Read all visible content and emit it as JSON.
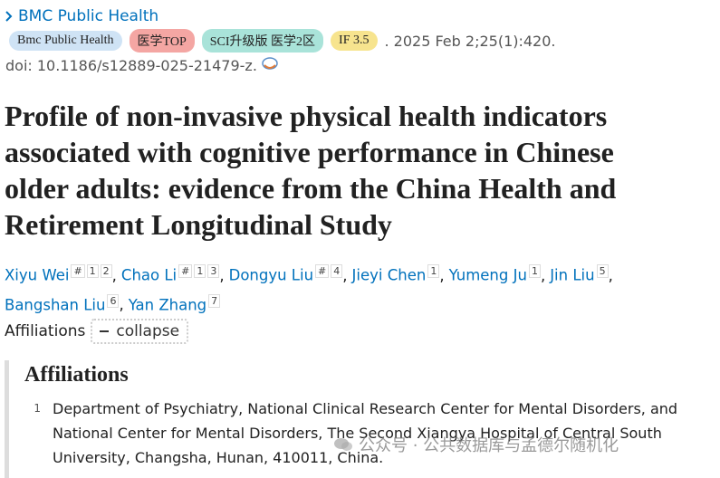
{
  "header": {
    "journal": "BMC Public Health",
    "badges": [
      {
        "text": "Bmc Public Health",
        "color": "#cfe3f5"
      },
      {
        "text": "医学TOP",
        "color": "#f4a6a3"
      },
      {
        "text": "SCI升级版 医学2区",
        "color": "#a9e3d9"
      },
      {
        "text": "IF 3.5",
        "color": "#f7e48e"
      }
    ],
    "citation": ". 2025 Feb 2;25(1):420.",
    "doi": "doi: 10.1186/s12889-025-21479-z."
  },
  "title_lines": [
    "Profile of non-invasive physical health indicators",
    "associated with cognitive performance in Chinese",
    "older adults: evidence from the China Health and",
    "Retirement Longitudinal Study"
  ],
  "authors": {
    "separator": ",",
    "list": [
      {
        "name": "Xiyu Wei",
        "marks": [
          "#",
          "1",
          "2"
        ]
      },
      {
        "name": "Chao Li",
        "marks": [
          "#",
          "1",
          "3"
        ]
      },
      {
        "name": "Dongyu Liu",
        "marks": [
          "#",
          "4"
        ]
      },
      {
        "name": "Jieyi Chen",
        "marks": [
          "1"
        ]
      },
      {
        "name": "Yumeng Ju",
        "marks": [
          "1"
        ]
      },
      {
        "name": "Jin Liu",
        "marks": [
          "5"
        ]
      },
      {
        "name": "Bangshan Liu",
        "marks": [
          "6"
        ]
      },
      {
        "name": "Yan Zhang",
        "marks": [
          "7"
        ]
      }
    ]
  },
  "affiliations_toggle": {
    "label": "Affiliations",
    "button": "collapse"
  },
  "affiliations": {
    "heading": "Affiliations",
    "items": [
      {
        "number": "1",
        "text": "Department of Psychiatry, National Clinical Research Center for Mental Disorders, and National Center for Mental Disorders, The Second Xiangya Hospital of Central South University, Changsha, Hunan, 410011, China."
      }
    ]
  },
  "watermark": "公众号 · 公共数据库与孟德尔随机化"
}
